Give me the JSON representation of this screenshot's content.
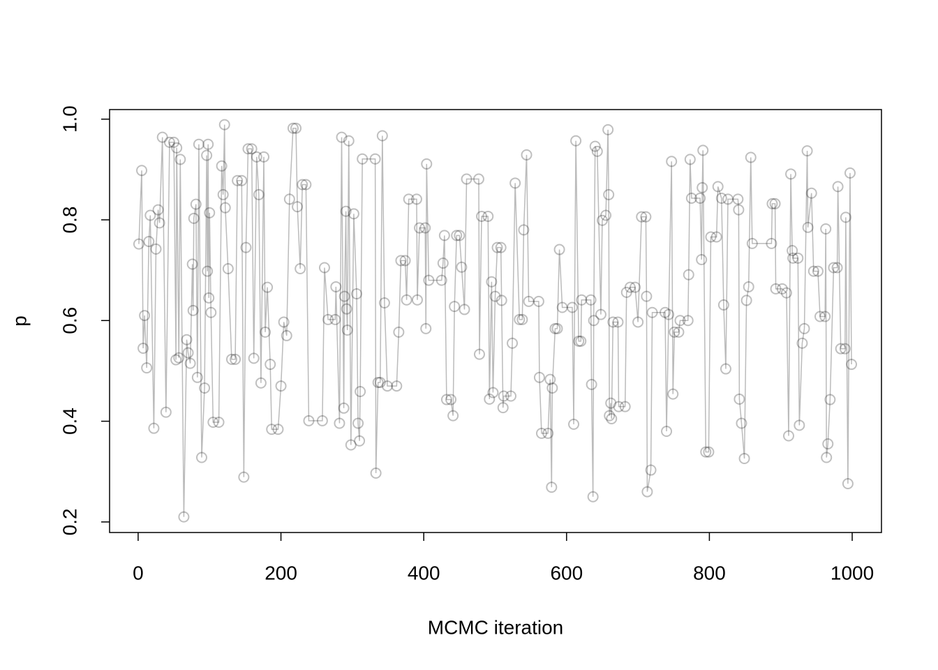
{
  "chart_data": {
    "type": "line",
    "markers": true,
    "xlabel": "MCMC iteration",
    "ylabel": "p",
    "color": "#000000",
    "line_color": "#bbbbbb",
    "marker_alpha": 0.25,
    "xlim": [
      -40,
      1041
    ],
    "ylim": [
      0.179,
      1.019
    ],
    "xticks": [
      0,
      200,
      400,
      600,
      800,
      1000
    ],
    "yticks": [
      0.2,
      0.4,
      0.6,
      0.8,
      {
        "value": 1,
        "label": "1.0"
      }
    ],
    "x": [
      1,
      5,
      7,
      9,
      12,
      15,
      17,
      22,
      25,
      28,
      30,
      34,
      39,
      44,
      50,
      53,
      54,
      57,
      59,
      64,
      68,
      70,
      73,
      76,
      77,
      78,
      81,
      83,
      85,
      89,
      93,
      96,
      97,
      98,
      99,
      100,
      102,
      105,
      113,
      117,
      119,
      121,
      122,
      126,
      131,
      136,
      139,
      145,
      148,
      151,
      154,
      159,
      162,
      166,
      169,
      172,
      176,
      178,
      181,
      185,
      187,
      196,
      200,
      204,
      208,
      212,
      217,
      221,
      223,
      227,
      230,
      235,
      239,
      258,
      261,
      266,
      276,
      277,
      282,
      285,
      288,
      289,
      291,
      292,
      293,
      295,
      298,
      302,
      306,
      308,
      310,
      311,
      314,
      332,
      333,
      336,
      339,
      342,
      345,
      349,
      362,
      365,
      368,
      374,
      376,
      379,
      390,
      391,
      394,
      402,
      403,
      404,
      407,
      425,
      427,
      429,
      432,
      438,
      441,
      443,
      446,
      450,
      453,
      457,
      460,
      477,
      478,
      481,
      490,
      492,
      495,
      497,
      500,
      503,
      508,
      509,
      511,
      512,
      522,
      524,
      528,
      534,
      538,
      540,
      544,
      547,
      561,
      562,
      565,
      574,
      577,
      579,
      580,
      584,
      587,
      590,
      594,
      608,
      610,
      613,
      617,
      620,
      621,
      634,
      635,
      637,
      638,
      640,
      643,
      648,
      650,
      655,
      658,
      659,
      660,
      662,
      663,
      665,
      672,
      673,
      682,
      684,
      689,
      696,
      700,
      705,
      711,
      712,
      713,
      718,
      720,
      738,
      740,
      743,
      747,
      749,
      751,
      757,
      759,
      770,
      771,
      773,
      775,
      787,
      789,
      790,
      791,
      795,
      799,
      802,
      810,
      812,
      817,
      820,
      823,
      826,
      840,
      841,
      842,
      845,
      849,
      852,
      855,
      858,
      860,
      887,
      888,
      892,
      893,
      902,
      908,
      911,
      914,
      916,
      917,
      924,
      926,
      930,
      933,
      937,
      938,
      943,
      946,
      952,
      955,
      962,
      963,
      964,
      966,
      969,
      974,
      979,
      980,
      984,
      990,
      991,
      994,
      997,
      999
    ],
    "values": [
      0.752,
      0.898,
      0.545,
      0.61,
      0.506,
      0.757,
      0.809,
      0.386,
      0.742,
      0.82,
      0.794,
      0.964,
      0.418,
      0.954,
      0.954,
      0.522,
      0.943,
      0.526,
      0.92,
      0.21,
      0.562,
      0.536,
      0.515,
      0.712,
      0.62,
      0.803,
      0.831,
      0.487,
      0.95,
      0.328,
      0.466,
      0.928,
      0.698,
      0.95,
      0.645,
      0.814,
      0.616,
      0.398,
      0.398,
      0.907,
      0.85,
      0.989,
      0.824,
      0.703,
      0.523,
      0.523,
      0.878,
      0.878,
      0.289,
      0.745,
      0.941,
      0.941,
      0.525,
      0.925,
      0.85,
      0.476,
      0.925,
      0.577,
      0.666,
      0.513,
      0.384,
      0.384,
      0.47,
      0.597,
      0.57,
      0.841,
      0.982,
      0.982,
      0.826,
      0.703,
      0.87,
      0.87,
      0.401,
      0.401,
      0.705,
      0.602,
      0.602,
      0.667,
      0.396,
      0.964,
      0.426,
      0.648,
      0.817,
      0.623,
      0.581,
      0.957,
      0.353,
      0.812,
      0.653,
      0.396,
      0.361,
      0.459,
      0.921,
      0.921,
      0.297,
      0.477,
      0.477,
      0.967,
      0.635,
      0.47,
      0.47,
      0.577,
      0.719,
      0.719,
      0.641,
      0.841,
      0.841,
      0.641,
      0.784,
      0.784,
      0.584,
      0.911,
      0.68,
      0.68,
      0.714,
      0.769,
      0.443,
      0.443,
      0.411,
      0.628,
      0.769,
      0.769,
      0.706,
      0.622,
      0.881,
      0.881,
      0.533,
      0.807,
      0.807,
      0.444,
      0.677,
      0.457,
      0.648,
      0.745,
      0.745,
      0.64,
      0.427,
      0.45,
      0.45,
      0.555,
      0.873,
      0.602,
      0.602,
      0.78,
      0.929,
      0.638,
      0.638,
      0.487,
      0.376,
      0.376,
      0.483,
      0.269,
      0.466,
      0.584,
      0.584,
      0.741,
      0.626,
      0.626,
      0.394,
      0.957,
      0.559,
      0.559,
      0.641,
      0.641,
      0.473,
      0.25,
      0.6,
      0.946,
      0.936,
      0.612,
      0.799,
      0.809,
      0.979,
      0.85,
      0.411,
      0.436,
      0.405,
      0.597,
      0.597,
      0.429,
      0.429,
      0.656,
      0.666,
      0.666,
      0.597,
      0.806,
      0.806,
      0.648,
      0.26,
      0.303,
      0.616,
      0.616,
      0.38,
      0.612,
      0.916,
      0.454,
      0.577,
      0.577,
      0.6,
      0.6,
      0.691,
      0.92,
      0.843,
      0.843,
      0.721,
      0.864,
      0.938,
      0.339,
      0.339,
      0.766,
      0.766,
      0.866,
      0.843,
      0.631,
      0.504,
      0.841,
      0.841,
      0.82,
      0.444,
      0.396,
      0.326,
      0.64,
      0.667,
      0.924,
      0.753,
      0.753,
      0.832,
      0.832,
      0.663,
      0.663,
      0.655,
      0.371,
      0.891,
      0.739,
      0.724,
      0.724,
      0.392,
      0.555,
      0.584,
      0.937,
      0.785,
      0.853,
      0.698,
      0.698,
      0.608,
      0.608,
      0.782,
      0.328,
      0.355,
      0.443,
      0.705,
      0.705,
      0.866,
      0.544,
      0.544,
      0.805,
      0.276,
      0.893,
      0.513
    ]
  }
}
